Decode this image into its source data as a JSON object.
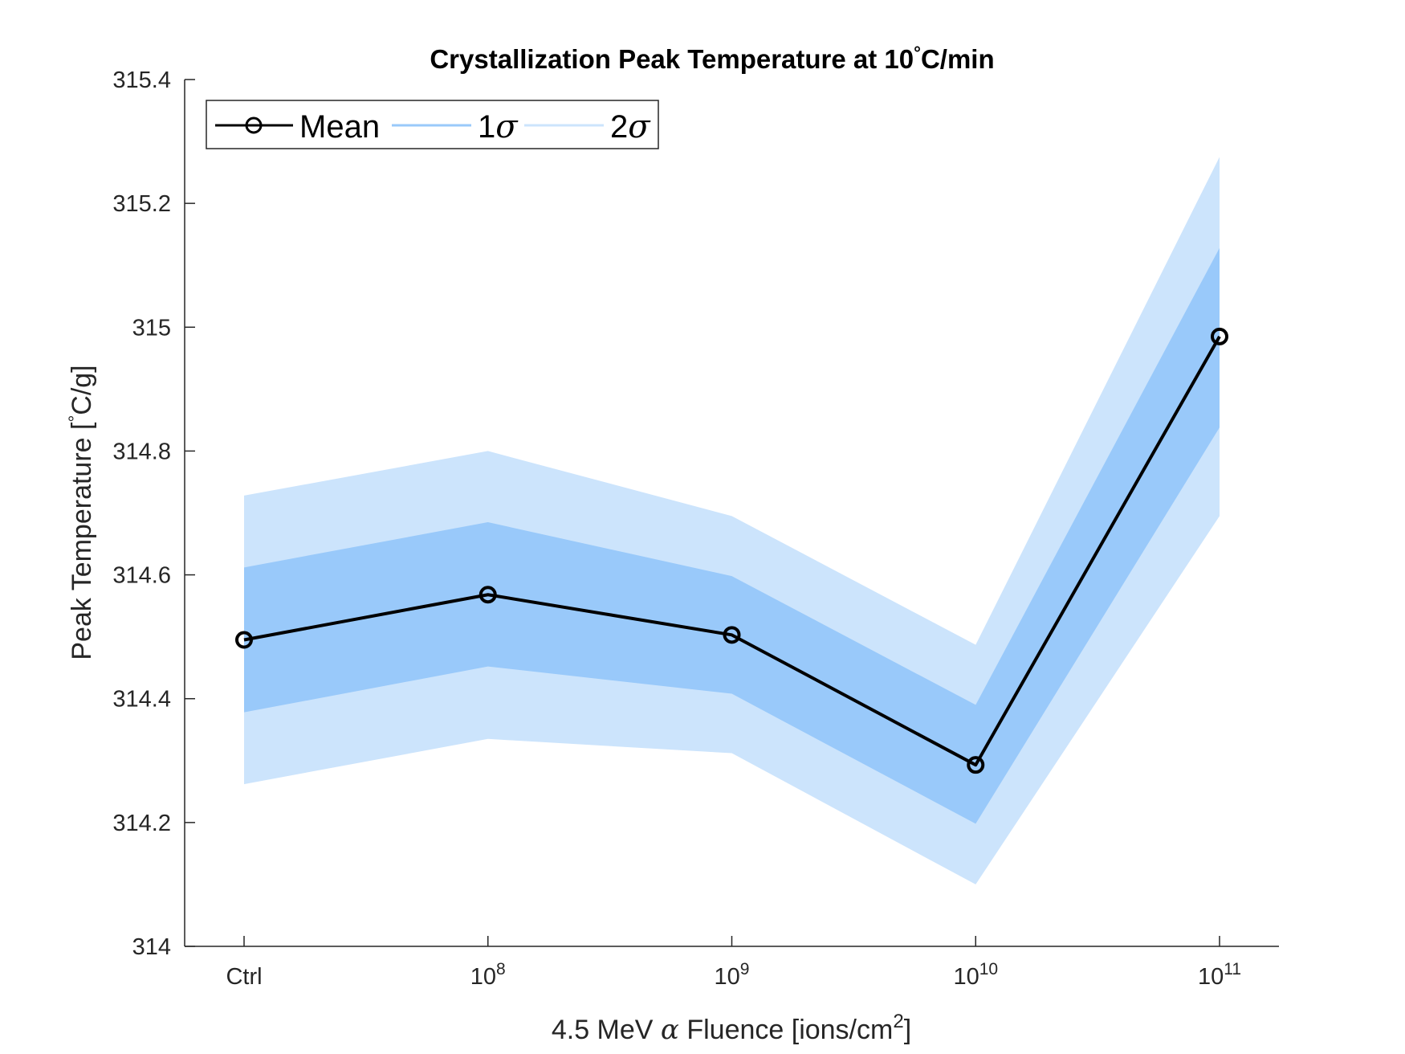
{
  "chart_data": {
    "type": "line",
    "title": "Crystallization Peak Temperature at 10°C/min",
    "title_parts": {
      "before": "Crystallization Peak Temperature at 10",
      "degree": "°",
      "after": "C/min"
    },
    "xlabel": "4.5 MeV α Fluence [ions/cm2]",
    "xlabel_parts": {
      "before": "4.5 MeV ",
      "greek": "α",
      "after": " Fluence [ions/cm",
      "sup": "2",
      "end": "]"
    },
    "ylabel": "Peak Temperature [°C/g]",
    "ylabel_parts": {
      "before": "Peak Temperature [",
      "degree": "°",
      "after": "C/g]"
    },
    "categories": [
      {
        "base": "Ctrl",
        "exp": ""
      },
      {
        "base": "10",
        "exp": "8"
      },
      {
        "base": "10",
        "exp": "9"
      },
      {
        "base": "10",
        "exp": "10"
      },
      {
        "base": "10",
        "exp": "11"
      }
    ],
    "ylim": [
      314,
      315.4
    ],
    "yticks": [
      314,
      314.2,
      314.4,
      314.6,
      314.8,
      315,
      315.2,
      315.4
    ],
    "ytick_labels": [
      "314",
      "314.2",
      "314.4",
      "314.6",
      "314.8",
      "315",
      "315.2",
      "315.4"
    ],
    "grid": false,
    "legend_position": "top-left",
    "series": [
      {
        "name": "Mean",
        "values": [
          314.495,
          314.568,
          314.503,
          314.293,
          314.985
        ],
        "color": "#000000",
        "marker": "circle"
      }
    ],
    "bands": [
      {
        "name": "1σ",
        "label_num": "1",
        "label_greek": "σ",
        "lower": [
          314.378,
          314.452,
          314.408,
          314.198,
          314.838
        ],
        "upper": [
          314.612,
          314.685,
          314.598,
          314.39,
          315.128
        ],
        "color": "#99c9fa"
      },
      {
        "name": "2σ",
        "label_num": "2",
        "label_greek": "σ",
        "lower": [
          314.262,
          314.335,
          314.312,
          314.1,
          314.695
        ],
        "upper": [
          314.728,
          314.8,
          314.695,
          314.487,
          315.275
        ],
        "color": "#cce4fc"
      }
    ]
  }
}
